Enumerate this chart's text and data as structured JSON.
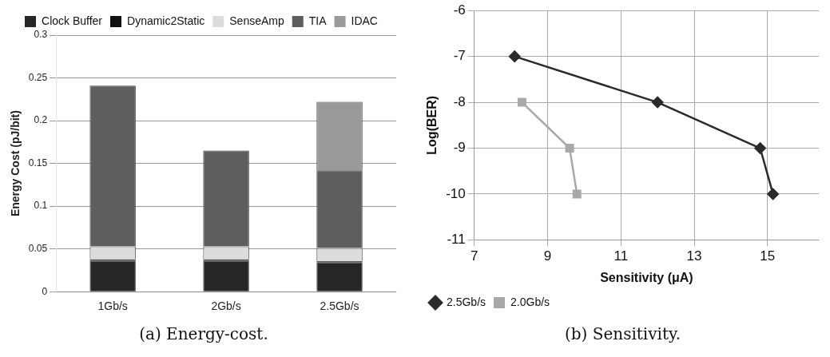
{
  "chart_data": [
    {
      "type": "bar",
      "title": "(a) Energy-cost.",
      "ylabel": "Energy Cost (pJ/bit)",
      "categories": [
        "1Gb/s",
        "2Gb/s",
        "2.5Gb/s"
      ],
      "stacked": true,
      "series": [
        {
          "name": "Clock Buffer",
          "color": "#262626",
          "values": [
            0.036,
            0.036,
            0.034
          ]
        },
        {
          "name": "Dynamic2Static",
          "color": "#111111",
          "values": [
            0.002,
            0.002,
            0.002
          ]
        },
        {
          "name": "SenseAmp",
          "color": "#dcdcdc",
          "values": [
            0.015,
            0.015,
            0.015
          ]
        },
        {
          "name": "TIA",
          "color": "#5e5e5e",
          "values": [
            0.188,
            0.112,
            0.091
          ]
        },
        {
          "name": "IDAC",
          "color": "#9a9a9a",
          "values": [
            0,
            0,
            0.08
          ]
        }
      ],
      "ylim": [
        0,
        0.3
      ],
      "yticks": [
        0,
        0.05,
        0.1,
        0.15,
        0.2,
        0.25,
        0.3
      ],
      "grid": "y",
      "legend": "top"
    },
    {
      "type": "line",
      "title": "(b) Sensitivity.",
      "xlabel": "Sensitivity (μA)",
      "ylabel": "Log(BER)",
      "series": [
        {
          "name": "2.5Gb/s",
          "color": "#2a2a2a",
          "marker": "diamond",
          "x": [
            8.1,
            12,
            14.8,
            15.15
          ],
          "values": [
            -7,
            -8,
            -9,
            -10
          ]
        },
        {
          "name": "2.0Gb/s",
          "color": "#a8a8a8",
          "marker": "square",
          "x": [
            8.3,
            9.6,
            9.8
          ],
          "values": [
            -8,
            -9,
            -10
          ]
        }
      ],
      "xlim": [
        7,
        16.4
      ],
      "xticks": [
        7,
        9,
        11,
        13,
        15
      ],
      "ylim": [
        -11,
        -6
      ],
      "yticks": [
        -11,
        -10,
        -9,
        -8,
        -7,
        -6
      ],
      "grid": true,
      "legend": "bottom left",
      "line_style": "solid"
    }
  ]
}
